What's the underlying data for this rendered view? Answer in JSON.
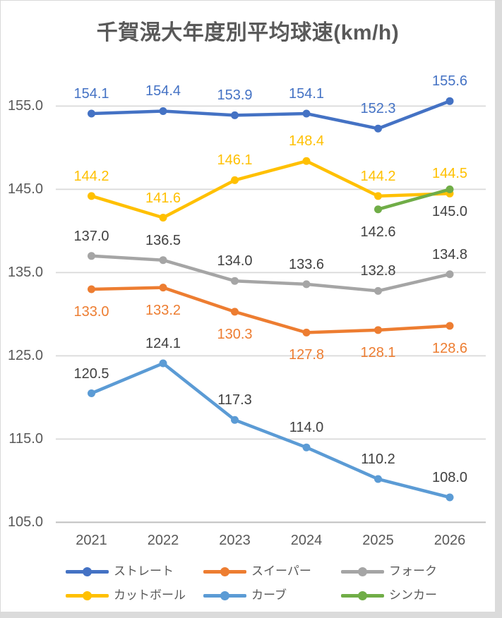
{
  "title": "千賀滉大年度別平均球速(km/h)",
  "chart_data": {
    "type": "line",
    "title": "千賀滉大年度別平均球速(km/h)",
    "x_categories": [
      "2021",
      "2022",
      "2023",
      "2024",
      "2025",
      "2026"
    ],
    "y_ticks": [
      "105.0",
      "115.0",
      "125.0",
      "135.0",
      "145.0",
      "155.0"
    ],
    "y_tick_values": [
      105,
      115,
      125,
      135,
      145,
      155
    ],
    "y_axis_range": [
      105,
      155
    ],
    "grid": true,
    "legend_position": "bottom",
    "series": [
      {
        "id": "straight",
        "name": "ストレート",
        "color": "#4472C4",
        "label_color": "#4472C4",
        "label_position": "above",
        "values": [
          154.1,
          154.4,
          153.9,
          154.1,
          152.3,
          155.6
        ]
      },
      {
        "id": "sweeper",
        "name": "スイーパー",
        "color": "#ED7D31",
        "label_color": "#ED7D31",
        "label_position": "below",
        "values": [
          133.0,
          133.2,
          130.3,
          127.8,
          128.1,
          128.6
        ]
      },
      {
        "id": "fork",
        "name": "フォーク",
        "color": "#A5A5A5",
        "label_color": "#404040",
        "label_position": "above",
        "values": [
          137.0,
          136.5,
          134.0,
          133.6,
          132.8,
          134.8
        ]
      },
      {
        "id": "cutter",
        "name": "カットボール",
        "color": "#FFC000",
        "label_color": "#FFC000",
        "label_position": "above",
        "values": [
          144.2,
          141.6,
          146.1,
          148.4,
          144.2,
          144.5
        ]
      },
      {
        "id": "curve",
        "name": "カーブ",
        "color": "#5B9BD5",
        "label_color": "#404040",
        "label_position": "above",
        "values": [
          120.5,
          124.1,
          117.3,
          114.0,
          110.2,
          108.0
        ]
      },
      {
        "id": "sinker",
        "name": "シンカー",
        "color": "#70AD47",
        "label_color": "#404040",
        "label_position": "below",
        "values": [
          null,
          null,
          null,
          null,
          142.6,
          145.0
        ]
      }
    ]
  }
}
